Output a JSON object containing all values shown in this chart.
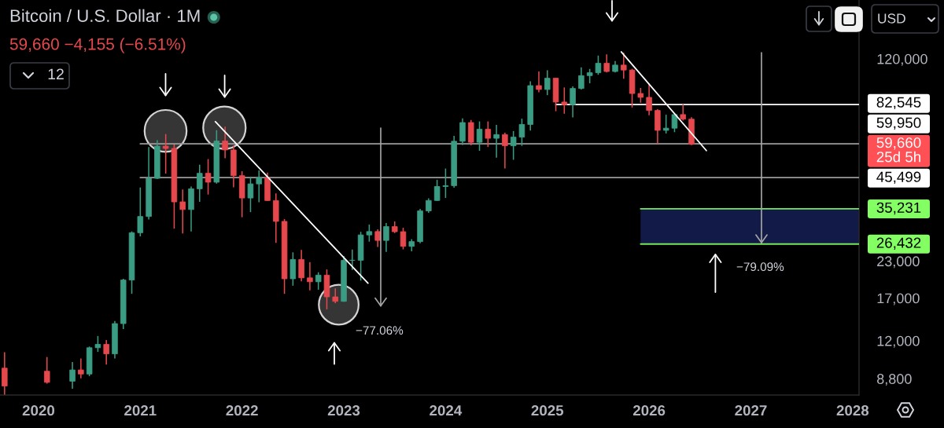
{
  "chart_data": {
    "type": "candlestick",
    "title": "Bitcoin / U.S. Dollar · 1M",
    "subtitle": "59,660 −4,155 (−6.51%)",
    "x": [
      "2019-09",
      "2020-02",
      "2020-05",
      "2020-06",
      "2020-07",
      "2020-08",
      "2020-09",
      "2020-10",
      "2020-11",
      "2020-12",
      "2021-01",
      "2021-02",
      "2021-03",
      "2021-04",
      "2021-05",
      "2021-06",
      "2021-07",
      "2021-08",
      "2021-09",
      "2021-10",
      "2021-11",
      "2021-12",
      "2022-01",
      "2022-02",
      "2022-03",
      "2022-04",
      "2022-05",
      "2022-06",
      "2022-07",
      "2022-08",
      "2022-09",
      "2022-10",
      "2022-11",
      "2022-12",
      "2023-01",
      "2023-02",
      "2023-03",
      "2023-04",
      "2023-05",
      "2023-06",
      "2023-07",
      "2023-08",
      "2023-09",
      "2023-10",
      "2023-11",
      "2023-12",
      "2024-01",
      "2024-02",
      "2024-03",
      "2024-04",
      "2024-05",
      "2024-06",
      "2024-07",
      "2024-08",
      "2024-09",
      "2024-10",
      "2024-11",
      "2024-12",
      "2025-01",
      "2025-02",
      "2025-03",
      "2025-04",
      "2025-05",
      "2025-06",
      "2025-07",
      "2025-08",
      "2025-09",
      "2025-10",
      "2025-11",
      "2025-12",
      "2026-01",
      "2026-02",
      "2026-03",
      "2026-04",
      "2026-05",
      "2026-06"
    ],
    "ohlc": [
      [
        9590,
        10930,
        7730,
        8290
      ],
      [
        9350,
        10500,
        8450,
        8540
      ],
      [
        8620,
        10080,
        8110,
        9450
      ],
      [
        9450,
        10380,
        8830,
        9140
      ],
      [
        9140,
        11440,
        8980,
        11330
      ],
      [
        11330,
        12470,
        10950,
        11650
      ],
      [
        11650,
        12070,
        9880,
        10780
      ],
      [
        10780,
        14100,
        10380,
        13800
      ],
      [
        13800,
        19900,
        13200,
        19700
      ],
      [
        19700,
        29300,
        17600,
        28990
      ],
      [
        28990,
        41950,
        28130,
        33100
      ],
      [
        33100,
        58350,
        32300,
        45200
      ],
      [
        45200,
        61780,
        44950,
        58800
      ],
      [
        58800,
        64900,
        47000,
        57700
      ],
      [
        57700,
        59600,
        30000,
        37300
      ],
      [
        37300,
        41300,
        28800,
        35040
      ],
      [
        35040,
        42300,
        29300,
        41500
      ],
      [
        41500,
        50500,
        37300,
        47100
      ],
      [
        47100,
        52900,
        39600,
        43800
      ],
      [
        43800,
        67000,
        43300,
        61300
      ],
      [
        61300,
        69000,
        53300,
        57000
      ],
      [
        57000,
        59100,
        42000,
        46200
      ],
      [
        46200,
        47900,
        32900,
        38500
      ],
      [
        38500,
        45800,
        34300,
        43200
      ],
      [
        43200,
        48200,
        37200,
        45500
      ],
      [
        45500,
        47400,
        37600,
        37700
      ],
      [
        37700,
        40000,
        26700,
        31800
      ],
      [
        31800,
        32400,
        17600,
        19900
      ],
      [
        19900,
        24700,
        18800,
        23300
      ],
      [
        23300,
        25200,
        19500,
        20050
      ],
      [
        20050,
        22800,
        18100,
        19420
      ],
      [
        19420,
        20990,
        18200,
        20500
      ],
      [
        20500,
        21480,
        15500,
        17170
      ],
      [
        17170,
        18400,
        16300,
        16550
      ],
      [
        16550,
        23950,
        16500,
        23130
      ],
      [
        23130,
        25250,
        21400,
        23150
      ],
      [
        23150,
        29200,
        19600,
        28470
      ],
      [
        28470,
        31000,
        26950,
        29270
      ],
      [
        29270,
        29800,
        25800,
        27220
      ],
      [
        27220,
        31400,
        24800,
        30480
      ],
      [
        30480,
        31800,
        28900,
        29230
      ],
      [
        29230,
        30200,
        25300,
        25930
      ],
      [
        25930,
        27500,
        24900,
        26960
      ],
      [
        26960,
        35200,
        26600,
        34650
      ],
      [
        34650,
        38400,
        34100,
        37720
      ],
      [
        37720,
        44700,
        37600,
        42280
      ],
      [
        42280,
        48970,
        38500,
        42580
      ],
      [
        42580,
        64000,
        41850,
        61200
      ],
      [
        61200,
        73800,
        59300,
        71300
      ],
      [
        71300,
        72800,
        59200,
        60700
      ],
      [
        60700,
        71950,
        56600,
        67500
      ],
      [
        67500,
        71950,
        58400,
        62700
      ],
      [
        62700,
        70000,
        53500,
        64600
      ],
      [
        64600,
        65600,
        49000,
        58970
      ],
      [
        58970,
        66500,
        52600,
        63300
      ],
      [
        63300,
        73600,
        58900,
        70200
      ],
      [
        70200,
        99800,
        66800,
        96400
      ],
      [
        96400,
        108300,
        91300,
        93400
      ],
      [
        93400,
        109300,
        89200,
        102400
      ],
      [
        102400,
        102500,
        78200,
        84300
      ],
      [
        84300,
        95000,
        76600,
        82500
      ],
      [
        82500,
        95800,
        74400,
        94200
      ],
      [
        94200,
        111900,
        93300,
        104600
      ],
      [
        104600,
        110500,
        98200,
        107100
      ],
      [
        107100,
        123200,
        105300,
        115700
      ],
      [
        115700,
        124500,
        107300,
        108200
      ],
      [
        108200,
        117900,
        107300,
        114000
      ],
      [
        114000,
        126200,
        102000,
        109500
      ],
      [
        109500,
        110600,
        80600,
        90400
      ],
      [
        90400,
        94600,
        83800,
        87600
      ],
      [
        87600,
        97900,
        75700,
        78700
      ],
      [
        78700,
        79500,
        60000,
        66900
      ],
      [
        66900,
        76000,
        65200,
        68100
      ],
      [
        68100,
        77000,
        65900,
        76100
      ],
      [
        76100,
        82800,
        72500,
        73300
      ],
      [
        73300,
        74500,
        59300,
        59660
      ]
    ],
    "colors": [
      "#e5484d",
      "#e5484d",
      "#3b9c84",
      "#e5484d",
      "#3b9c84",
      "#3b9c84",
      "#e5484d",
      "#3b9c84",
      "#3b9c84",
      "#3b9c84",
      "#3b9c84",
      "#3b9c84",
      "#3b9c84",
      "#e5484d",
      "#e5484d",
      "#e5484d",
      "#3b9c84",
      "#3b9c84",
      "#e5484d",
      "#3b9c84",
      "#e5484d",
      "#e5484d",
      "#e5484d",
      "#3b9c84",
      "#3b9c84",
      "#e5484d",
      "#e5484d",
      "#e5484d",
      "#3b9c84",
      "#e5484d",
      "#e5484d",
      "#3b9c84",
      "#e5484d",
      "#e5484d",
      "#3b9c84",
      "#3b9c84",
      "#3b9c84",
      "#3b9c84",
      "#e5484d",
      "#3b9c84",
      "#e5484d",
      "#e5484d",
      "#3b9c84",
      "#3b9c84",
      "#3b9c84",
      "#3b9c84",
      "#3b9c84",
      "#3b9c84",
      "#3b9c84",
      "#e5484d",
      "#3b9c84",
      "#e5484d",
      "#3b9c84",
      "#e5484d",
      "#3b9c84",
      "#3b9c84",
      "#3b9c84",
      "#e5484d",
      "#3b9c84",
      "#e5484d",
      "#e5484d",
      "#3b9c84",
      "#3b9c84",
      "#3b9c84",
      "#3b9c84",
      "#e5484d",
      "#3b9c84",
      "#e5484d",
      "#e5484d",
      "#e5484d",
      "#e5484d",
      "#e5484d",
      "#3b9c84",
      "#3b9c84",
      "#e5484d",
      "#e5484d"
    ],
    "value_labels": [
      null,
      null,
      null,
      null,
      null,
      null,
      null,
      null,
      null,
      null,
      null,
      null,
      null,
      null,
      null,
      null,
      null,
      null,
      null,
      null,
      null,
      null,
      null,
      null,
      null,
      null,
      null,
      null,
      null,
      null,
      null,
      null,
      null,
      null,
      null,
      null,
      null,
      null,
      null,
      null,
      null,
      null,
      null,
      null,
      null,
      null,
      null,
      null,
      null,
      null,
      null,
      null,
      null,
      null,
      null,
      null,
      null,
      null,
      null,
      null,
      null,
      null,
      null,
      null,
      null,
      null,
      null,
      null,
      null,
      null,
      null,
      null,
      null,
      null,
      null,
      "59,660\n25d 5h"
    ],
    "series": [
      {
        "type": "line",
        "color": "#9b9b9b",
        "x": [
          "2021-01",
          "2028-01-24"
        ],
        "values": [
          59950,
          59950
        ],
        "value_labels": [
          null,
          "59,950"
        ]
      },
      {
        "type": "line",
        "color": "#9b9b9b",
        "x": [
          "2021-01",
          "2028-01-24"
        ],
        "values": [
          45499,
          45499
        ],
        "value_labels": [
          null,
          "45,499"
        ]
      },
      {
        "type": "line",
        "color": "#ffffff",
        "x": [
          "2025-02",
          "2028-01-24"
        ],
        "values": [
          82545,
          82545
        ],
        "value_labels": [
          null,
          "82,545"
        ]
      },
      {
        "type": "line",
        "color": "#77e85a",
        "x": [
          "2025-12",
          "2028-01-24"
        ],
        "values": [
          35231,
          35231
        ],
        "value_labels": [
          null,
          "35,231"
        ]
      },
      {
        "type": "line",
        "color": "#77e85a",
        "x": [
          "2025-12",
          "2028-01-24"
        ],
        "values": [
          26432,
          26432
        ],
        "value_labels": [
          null,
          "26,432"
        ]
      },
      {
        "type": "line",
        "color": "#ffffff",
        "x": [
          "2021-09-27",
          "2023-03-27"
        ],
        "values": [
          71800,
          19200
        ]
      },
      {
        "type": "line",
        "color": "#ffffff",
        "x": [
          "2025-09-23",
          "2026-07-24"
        ],
        "values": [
          127000,
          56700
        ]
      }
    ],
    "bands": [
      {
        "axis": "y",
        "from": 26432,
        "to": 35231,
        "color": "#121a47"
      }
    ],
    "annotations": [
      "12",
      "USD",
      "−77.06%",
      "−79.09%"
    ],
    "log": "y",
    "xlim": [
      "2019-08-15",
      "2028-01-24"
    ],
    "xticks": [
      "2020",
      "2021",
      "2022",
      "2023",
      "2024",
      "2025",
      "2026",
      "2027",
      "2028"
    ],
    "ylim": [
      7700,
      194000
    ],
    "yticks": [
      {
        "value": 8800,
        "label": "8,800"
      },
      {
        "value": 12000,
        "label": "12,000"
      },
      {
        "value": 17000,
        "label": "17,000"
      },
      {
        "value": 23000,
        "label": "23,000"
      },
      {
        "value": 120000,
        "label": "120,000"
      }
    ]
  }
}
